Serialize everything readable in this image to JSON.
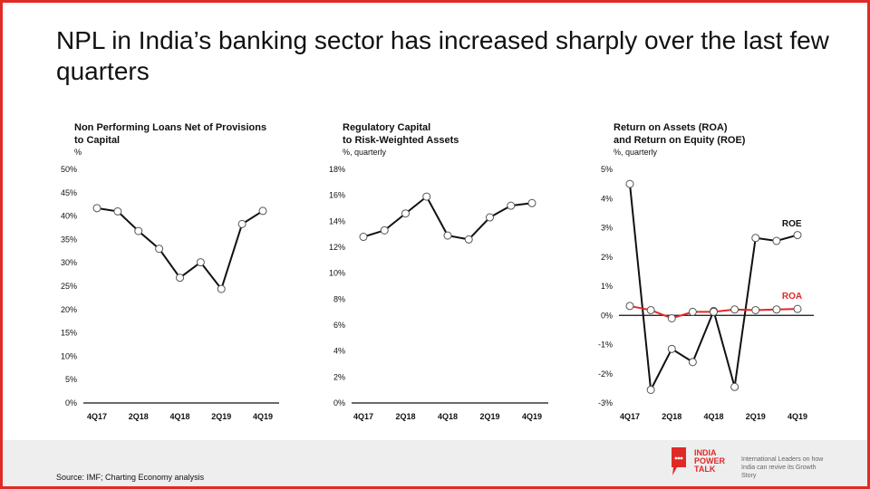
{
  "title": "NPL in India’s banking sector has increased sharply over the last few quarters",
  "colors": {
    "frame": "#e02a26",
    "line_black": "#111111",
    "line_red": "#e02a26"
  },
  "chart_data": [
    {
      "type": "line",
      "title": "Non Performing Loans Net of Provisions to Capital",
      "unit": "%",
      "x": [
        "4Q17",
        "1Q18",
        "2Q18",
        "3Q18",
        "4Q18",
        "1Q19",
        "2Q19",
        "3Q19",
        "4Q19"
      ],
      "tick_labels": [
        "4Q17",
        "2Q18",
        "4Q18",
        "2Q19",
        "4Q19"
      ],
      "y_ticks": [
        "0%",
        "5%",
        "10%",
        "15%",
        "20%",
        "25%",
        "30%",
        "35%",
        "40%",
        "45%",
        "50%"
      ],
      "ylim": [
        0,
        50
      ],
      "series": [
        {
          "values": [
            41.7,
            41.0,
            36.8,
            33.0,
            26.8,
            30.1,
            24.4,
            38.3,
            41.1
          ]
        }
      ]
    },
    {
      "type": "line",
      "title": "Regulatory Capital to Risk-Weighted Assets",
      "unit": "%, quarterly",
      "x": [
        "4Q17",
        "1Q18",
        "2Q18",
        "3Q18",
        "4Q18",
        "1Q19",
        "2Q19",
        "3Q19",
        "4Q19"
      ],
      "tick_labels": [
        "4Q17",
        "2Q18",
        "4Q18",
        "2Q19",
        "4Q19"
      ],
      "y_ticks": [
        "0%",
        "2%",
        "4%",
        "6%",
        "8%",
        "10%",
        "12%",
        "14%",
        "16%",
        "18%"
      ],
      "ylim": [
        0,
        18
      ],
      "series": [
        {
          "values": [
            12.8,
            13.3,
            14.6,
            15.9,
            12.9,
            12.6,
            14.3,
            15.2,
            15.4
          ]
        }
      ]
    },
    {
      "type": "line",
      "title": "Return on Assets (ROA) and Return on Equity (ROE)",
      "unit": "%, quarterly",
      "x": [
        "4Q17",
        "1Q18",
        "2Q18",
        "3Q18",
        "4Q18",
        "1Q19",
        "2Q19",
        "3Q19",
        "4Q19"
      ],
      "tick_labels": [
        "4Q17",
        "2Q18",
        "4Q18",
        "2Q19",
        "4Q19"
      ],
      "y_ticks": [
        "-3%",
        "-2%",
        "-1%",
        "0%",
        "1%",
        "2%",
        "3%",
        "4%",
        "5%"
      ],
      "ylim": [
        -3,
        5
      ],
      "series": [
        {
          "name": "ROE",
          "color": "#111111",
          "values": [
            4.5,
            -2.55,
            -1.15,
            -1.6,
            0.15,
            -2.45,
            2.65,
            2.55,
            2.75
          ]
        },
        {
          "name": "ROA",
          "color": "#e02a26",
          "values": [
            0.32,
            0.18,
            -0.1,
            0.12,
            0.12,
            0.2,
            0.18,
            0.2,
            0.22
          ]
        }
      ]
    }
  ],
  "chart_titles": [
    {
      "line1": "Non Performing Loans Net of Provisions",
      "line2": "to Capital",
      "unit": "%"
    },
    {
      "line1": "Regulatory Capital",
      "line2": "to Risk-Weighted Assets",
      "unit": "%, quarterly"
    },
    {
      "line1": "Return on Assets (ROA)",
      "line2": "and Return on Equity (ROE)",
      "unit": "%, quarterly"
    }
  ],
  "footer": {
    "source": "Source: IMF; Charting Economy analysis",
    "logo_lines": [
      "INDIA",
      "POWER",
      "TALK"
    ],
    "tagline": "International Leaders on how India can revive its Growth Story"
  }
}
